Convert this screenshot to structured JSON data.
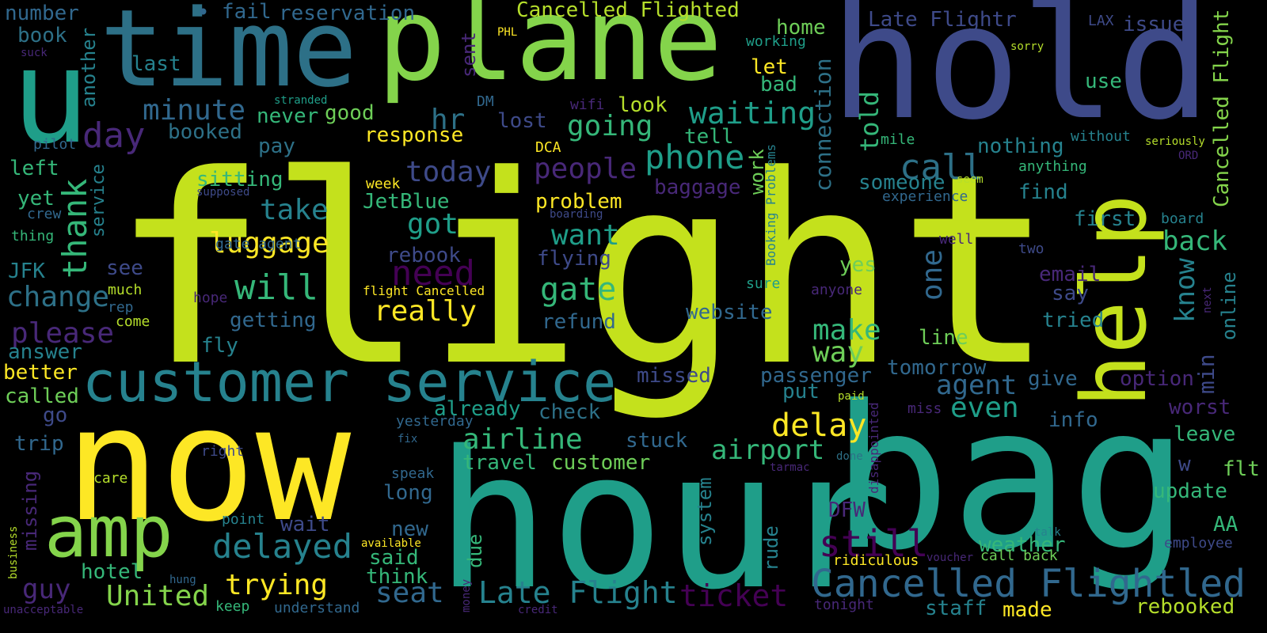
{
  "background": "#000000",
  "palette": {
    "c1": "#c4e11c",
    "c2": "#fde725",
    "c3": "#1f9e89",
    "c4": "#3e4a89",
    "c5": "#84d44b",
    "c6": "#2d7087",
    "c7": "#440154",
    "c8": "#b5de2b",
    "c9": "#26828e",
    "c10": "#6ece58",
    "c11": "#482878",
    "c12": "#35b779",
    "c13": "#31688e"
  },
  "words": {
    "flight": "flight",
    "now": "now",
    "hour": "hour",
    "bag": "bag",
    "hold": "hold",
    "plane": "plane",
    "time": "time",
    "u": "u",
    "help": "help",
    "customer_service": "customer service",
    "amp": "amp",
    "cancelled_flightled_big": "Cancelled Flightled",
    "delayed": "delayed",
    "still": "still",
    "late_flight": "Late Flight",
    "trying": "trying",
    "united": "United",
    "seat": "seat",
    "ticket": "ticket",
    "airline": "airline",
    "airport": "airport",
    "delay": "delay",
    "will": "will",
    "change": "change",
    "please": "please",
    "really": "really",
    "gate": "gate",
    "need": "need",
    "thank": "thank",
    "phone": "phone",
    "people": "people",
    "one": "one",
    "call": "call",
    "day": "day",
    "minute": "minute",
    "going": "going",
    "waiting": "waiting",
    "today": "today",
    "got": "got",
    "take": "take",
    "luggage": "luggage",
    "want": "want",
    "make": "make",
    "way": "way",
    "even": "even",
    "agent": "agent",
    "back": "back",
    "know": "know",
    "min": "min",
    "told": "told",
    "connection": "connection",
    "cancelled_flighted_top": "Cancelled Flighted",
    "late_flightr": "Late Flightr",
    "cancelled_flight_v": "Cancelled Flight",
    "reservation": "reservation",
    "fail": "fail",
    "number": "number",
    "book": "book",
    "suck": "suck",
    "last": "last",
    "another": "another",
    "sent": "sent",
    "phl": "PHL",
    "home": "home",
    "working": "working",
    "let": "let",
    "bad": "bad",
    "lax": "LAX",
    "issue": "issue",
    "sorry": "sorry",
    "use": "use",
    "stranded": "stranded",
    "dm": "DM",
    "hr": "hr",
    "lost": "lost",
    "wifi": "wifi",
    "look": "look",
    "good": "good",
    "never": "never",
    "booked": "booked",
    "pilot": "pilot",
    "pay": "pay",
    "response": "response",
    "dca": "DCA",
    "tell": "tell",
    "work": "work",
    "booking_problems": "Booking Problems",
    "mile": "mile",
    "nothing": "nothing",
    "without": "without",
    "seriously": "seriously",
    "ord": "ORD",
    "anything": "anything",
    "service": "service",
    "left": "left",
    "sitting": "sitting",
    "week": "week",
    "baggage": "baggage",
    "someone": "someone",
    "seem": "seem",
    "find": "find",
    "experience": "experience",
    "supposed": "supposed",
    "yet": "yet",
    "crew": "crew",
    "jetblue": "JetBlue",
    "problem": "problem",
    "boarding": "boarding",
    "first": "first",
    "board": "board",
    "thing": "thing",
    "gate_agent": "gate agent",
    "rebook": "rebook",
    "flying": "flying",
    "well": "well",
    "two": "two",
    "jfk": "JFK",
    "see": "see",
    "yes": "yes",
    "email": "email",
    "much": "much",
    "hope": "hope",
    "flight_cancelled": "flight Cancelled",
    "sure": "sure",
    "anyone": "anyone",
    "say": "say",
    "next": "next",
    "online": "online",
    "rep": "rep",
    "getting": "getting",
    "website": "website",
    "tried": "tried",
    "come": "come",
    "refund": "refund",
    "line": "line",
    "answer": "answer",
    "fly": "fly",
    "tomorrow": "tomorrow",
    "better": "better",
    "missed": "missed",
    "passenger": "passenger",
    "give": "give",
    "option": "option",
    "called": "called",
    "put": "put",
    "paid": "paid",
    "worst": "worst",
    "go": "go",
    "already": "already",
    "check": "check",
    "disappointed": "disappointed",
    "miss": "miss",
    "info": "info",
    "yesterday": "yesterday",
    "trip": "trip",
    "fix": "fix",
    "stuck": "stuck",
    "leave": "leave",
    "right": "right",
    "done": "done",
    "travel": "travel",
    "customer": "customer",
    "w": "w",
    "flt": "flt",
    "care": "care",
    "speak": "speak",
    "tarmac": "tarmac",
    "system": "system",
    "missing": "missing",
    "long": "long",
    "update": "update",
    "dfw": "DFW",
    "point": "point",
    "wait": "wait",
    "new": "new",
    "rude": "rude",
    "aa": "AA",
    "talk": "talk",
    "available": "available",
    "due": "due",
    "weather": "weather",
    "employee": "employee",
    "business": "business",
    "said": "said",
    "call_back": "call back",
    "hotel": "hotel",
    "ridiculous": "ridiculous",
    "voucher": "voucher",
    "hung": "hung",
    "think": "think",
    "guy": "guy",
    "money": "money",
    "staff": "staff",
    "rebooked": "rebooked",
    "keep": "keep",
    "understand": "understand",
    "credit": "credit",
    "tonight": "tonight",
    "made": "made",
    "unacceptable": "unacceptable"
  }
}
